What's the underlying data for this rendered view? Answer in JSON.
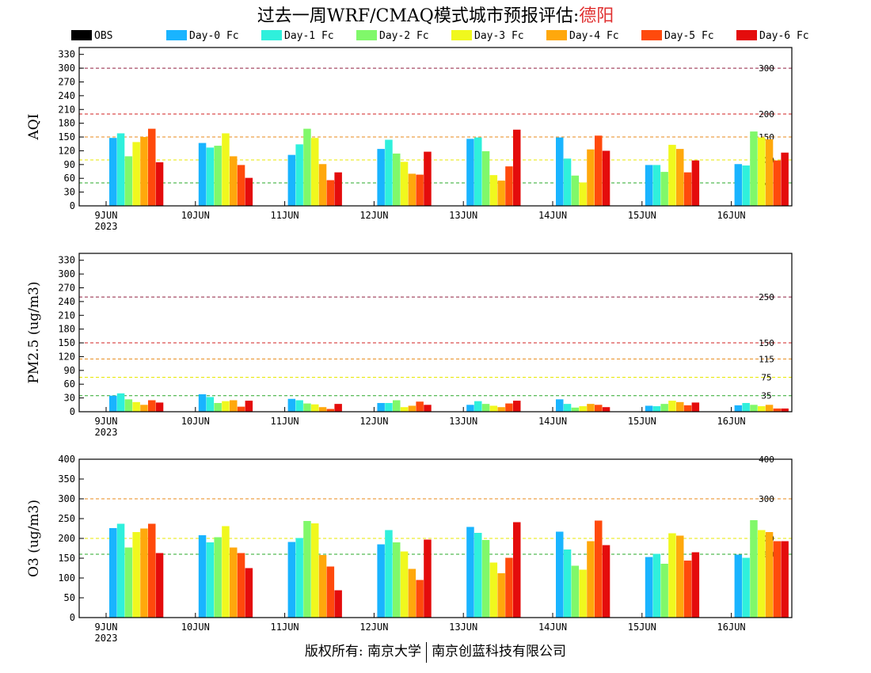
{
  "title": {
    "prefix": "过去一周WRF/CMAQ模式城市预报评估:",
    "city": "德阳"
  },
  "footer": {
    "left": "版权所有: 南京大学",
    "right": "南京创蓝科技有限公司"
  },
  "colors": {
    "OBS": "#000000",
    "Day-0 Fc": "#19b4ff",
    "Day-1 Fc": "#2ff0dc",
    "Day-2 Fc": "#80f86a",
    "Day-3 Fc": "#f0f81e",
    "Day-4 Fc": "#ffa80c",
    "Day-5 Fc": "#ff4a0c",
    "Day-6 Fc": "#e40c0c"
  },
  "chart_data": [
    {
      "type": "bar",
      "ylabel": "AQI",
      "ylim": [
        0,
        345
      ],
      "yticks": [
        0,
        30,
        60,
        90,
        120,
        150,
        180,
        210,
        240,
        270,
        300,
        330
      ],
      "categories": [
        "9JUN",
        "10JUN",
        "11JUN",
        "12JUN",
        "13JUN",
        "14JUN",
        "15JUN",
        "16JUN"
      ],
      "year_label": "2023",
      "thresholds": [
        {
          "value": 50,
          "label": "50",
          "color": "#2aa82a"
        },
        {
          "value": 100,
          "label": "100",
          "color": "#e8e800"
        },
        {
          "value": 150,
          "label": "150",
          "color": "#e88a1a"
        },
        {
          "value": 200,
          "label": "200",
          "color": "#d02020"
        },
        {
          "value": 300,
          "label": "300",
          "color": "#902040"
        }
      ],
      "series": [
        {
          "name": "OBS",
          "values": [
            null,
            null,
            null,
            null,
            null,
            null,
            null,
            null
          ]
        },
        {
          "name": "Day-0 Fc",
          "values": [
            148,
            137,
            111,
            124,
            146,
            149,
            89,
            91
          ]
        },
        {
          "name": "Day-1 Fc",
          "values": [
            158,
            127,
            134,
            144,
            149,
            103,
            89,
            88
          ]
        },
        {
          "name": "Day-2 Fc",
          "values": [
            108,
            131,
            168,
            114,
            119,
            66,
            74,
            162
          ]
        },
        {
          "name": "Day-3 Fc",
          "values": [
            139,
            158,
            148,
            96,
            67,
            51,
            133,
            149
          ]
        },
        {
          "name": "Day-4 Fc",
          "values": [
            150,
            108,
            91,
            70,
            55,
            123,
            124,
            145
          ]
        },
        {
          "name": "Day-5 Fc",
          "values": [
            168,
            89,
            56,
            68,
            86,
            153,
            73,
            99
          ]
        },
        {
          "name": "Day-6 Fc",
          "values": [
            95,
            61,
            73,
            118,
            166,
            120,
            99,
            116
          ]
        }
      ]
    },
    {
      "type": "bar",
      "ylabel": "PM2.5 (ug/m3)",
      "ylim": [
        0,
        345
      ],
      "yticks": [
        0,
        30,
        60,
        90,
        120,
        150,
        180,
        210,
        240,
        270,
        300,
        330
      ],
      "categories": [
        "9JUN",
        "10JUN",
        "11JUN",
        "12JUN",
        "13JUN",
        "14JUN",
        "15JUN",
        "16JUN"
      ],
      "year_label": "2023",
      "thresholds": [
        {
          "value": 35,
          "label": "35",
          "color": "#2aa82a"
        },
        {
          "value": 75,
          "label": "75",
          "color": "#e8e800"
        },
        {
          "value": 115,
          "label": "115",
          "color": "#e88a1a"
        },
        {
          "value": 150,
          "label": "150",
          "color": "#d02020"
        },
        {
          "value": 250,
          "label": "250",
          "color": "#902040"
        }
      ],
      "series": [
        {
          "name": "OBS",
          "values": [
            null,
            null,
            null,
            null,
            null,
            null,
            null,
            null
          ]
        },
        {
          "name": "Day-0 Fc",
          "values": [
            35,
            38,
            28,
            19,
            15,
            27,
            13,
            14
          ]
        },
        {
          "name": "Day-1 Fc",
          "values": [
            40,
            32,
            25,
            19,
            23,
            17,
            12,
            19
          ]
        },
        {
          "name": "Day-2 Fc",
          "values": [
            27,
            19,
            18,
            25,
            17,
            9,
            17,
            15
          ]
        },
        {
          "name": "Day-3 Fc",
          "values": [
            21,
            23,
            16,
            10,
            13,
            12,
            24,
            12
          ]
        },
        {
          "name": "Day-4 Fc",
          "values": [
            15,
            25,
            10,
            13,
            10,
            17,
            21,
            15
          ]
        },
        {
          "name": "Day-5 Fc",
          "values": [
            25,
            11,
            6,
            22,
            18,
            15,
            14,
            7
          ]
        },
        {
          "name": "Day-6 Fc",
          "values": [
            20,
            24,
            17,
            15,
            24,
            10,
            20,
            7
          ]
        }
      ]
    },
    {
      "type": "bar",
      "ylabel": "O3 (ug/m3)",
      "ylim": [
        0,
        400
      ],
      "yticks": [
        0,
        50,
        100,
        150,
        200,
        250,
        300,
        350,
        400
      ],
      "categories": [
        "9JUN",
        "10JUN",
        "11JUN",
        "12JUN",
        "13JUN",
        "14JUN",
        "15JUN",
        "16JUN"
      ],
      "year_label": "2023",
      "thresholds": [
        {
          "value": 160,
          "label": "160",
          "color": "#2aa82a"
        },
        {
          "value": 200,
          "label": "200",
          "color": "#e8e800"
        },
        {
          "value": 300,
          "label": "300",
          "color": "#e88a1a"
        },
        {
          "value": 400,
          "label": "400",
          "color": "#d02020"
        }
      ],
      "series": [
        {
          "name": "OBS",
          "values": [
            null,
            null,
            null,
            null,
            null,
            null,
            null,
            null
          ]
        },
        {
          "name": "Day-0 Fc",
          "values": [
            226,
            208,
            191,
            185,
            229,
            217,
            153,
            159
          ]
        },
        {
          "name": "Day-1 Fc",
          "values": [
            237,
            190,
            201,
            221,
            214,
            172,
            161,
            151
          ]
        },
        {
          "name": "Day-2 Fc",
          "values": [
            177,
            203,
            244,
            190,
            196,
            131,
            136,
            246
          ]
        },
        {
          "name": "Day-3 Fc",
          "values": [
            216,
            231,
            238,
            167,
            139,
            121,
            213,
            221
          ]
        },
        {
          "name": "Day-4 Fc",
          "values": [
            225,
            177,
            158,
            123,
            112,
            193,
            207,
            216
          ]
        },
        {
          "name": "Day-5 Fc",
          "values": [
            237,
            163,
            129,
            95,
            151,
            245,
            144,
            193
          ]
        },
        {
          "name": "Day-6 Fc",
          "values": [
            163,
            125,
            69,
            197,
            241,
            183,
            165,
            193
          ]
        }
      ]
    }
  ]
}
